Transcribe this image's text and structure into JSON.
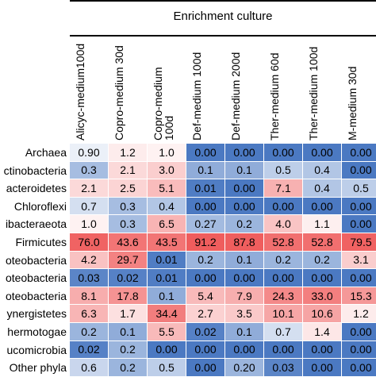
{
  "chart_data": {
    "type": "heatmap",
    "title": "Enrichment culture",
    "columns": [
      "Alicyc-medium100d",
      "Copro-medium 30d",
      "Copro-medium 100d",
      "Def-medium 100d",
      "Def-medium 200d",
      "Ther-medium 60d",
      "Ther-medium 100d",
      "M-medium 30d"
    ],
    "rows": [
      "Archaea",
      "ctinobacteria",
      "acteroidetes",
      "Chloroflexi",
      "ibacteraeota",
      "Firmicutes",
      "oteobacteria",
      "oteobacteria",
      "oteobacteria",
      "ynergistetes",
      "hermotogae",
      "ucomicrobia",
      "Other phyla"
    ],
    "values": [
      [
        "0.90",
        "1.2",
        "1.0",
        "0.00",
        "0.00",
        "0.00",
        "0.00",
        "0.00"
      ],
      [
        "0.3",
        "2.1",
        "3.0",
        "0.1",
        "0.1",
        "0.5",
        "0.4",
        "0.00"
      ],
      [
        "2.1",
        "2.5",
        "5.1",
        "0.01",
        "0.00",
        "7.1",
        "0.4",
        "0.5"
      ],
      [
        "0.7",
        "0.3",
        "0.4",
        "0.00",
        "0.00",
        "0.00",
        "0.00",
        "0.00"
      ],
      [
        "1.0",
        "0.3",
        "6.5",
        "0.27",
        "0.2",
        "4.0",
        "1.1",
        "0.00"
      ],
      [
        "76.0",
        "43.6",
        "43.5",
        "91.2",
        "87.8",
        "52.8",
        "52.8",
        "79.5"
      ],
      [
        "4.2",
        "29.7",
        "0.01",
        "0.2",
        "0.1",
        "0.2",
        "0.2",
        "3.1"
      ],
      [
        "0.03",
        "0.02",
        "0.01",
        "0.00",
        "0.00",
        "0.00",
        "0.00",
        "0.00"
      ],
      [
        "8.1",
        "17.8",
        "0.1",
        "5.4",
        "7.9",
        "24.3",
        "33.0",
        "15.3"
      ],
      [
        "6.3",
        "1.7",
        "34.4",
        "2.7",
        "3.5",
        "10.1",
        "10.6",
        "1.2"
      ],
      [
        "0.2",
        "0.1",
        "5.5",
        "0.02",
        "0.1",
        "0.7",
        "1.4",
        "0.00"
      ],
      [
        "0.02",
        "0.2",
        "0.00",
        "0.00",
        "0.00",
        "0.00",
        "0.00",
        "0.00"
      ],
      [
        "0.6",
        "0.2",
        "0.5",
        "0.00",
        "0.20",
        "0.03",
        "0.00",
        "0.00"
      ]
    ],
    "colors": {
      "low": "#4b79c2",
      "mid": "#ffffff",
      "high": "#ef5a5a"
    }
  }
}
